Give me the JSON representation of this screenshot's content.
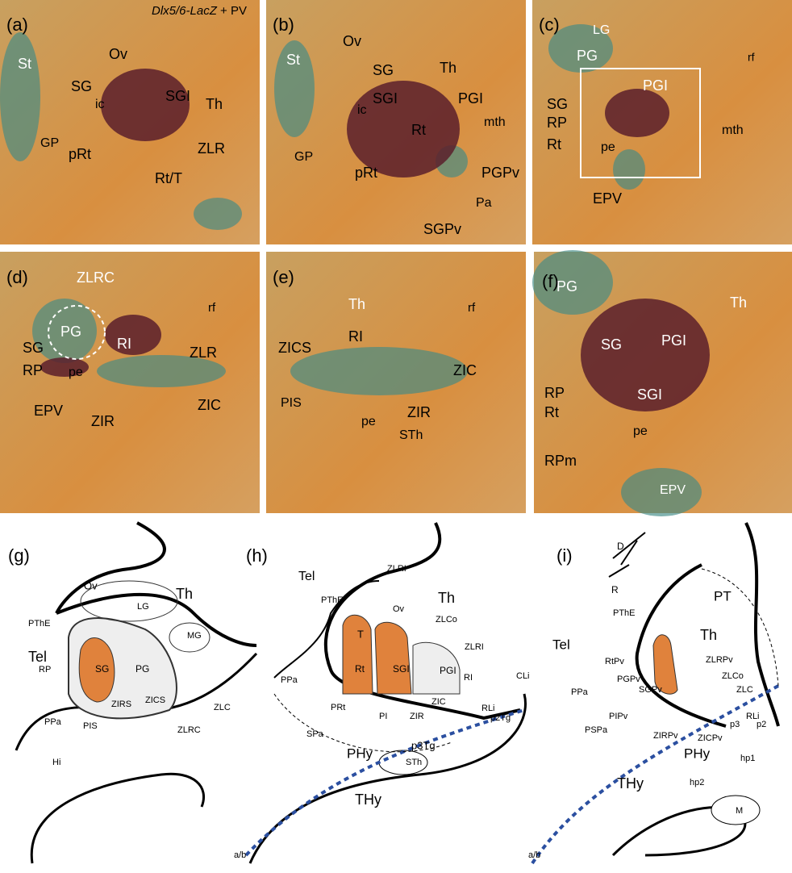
{
  "caption": {
    "gene": "Dlx5/6-LacZ",
    "rest": "+ PV"
  },
  "panels": [
    {
      "letter": "(a)",
      "labels": [
        "St",
        "Ov",
        "SG",
        "SGI",
        "Th",
        "ic",
        "GP",
        "ZLR",
        "pRt",
        "Rt/T"
      ]
    },
    {
      "letter": "(b)",
      "labels": [
        "Ov",
        "St",
        "SG",
        "Th",
        "SGI",
        "PGI",
        "ic",
        "Rt",
        "mth",
        "GP",
        "PGPv",
        "pRt",
        "SGPv",
        "Pa"
      ]
    },
    {
      "letter": "(c)",
      "labels": [
        "LG",
        "PG",
        "rf",
        "PGI",
        "SG",
        "RP",
        "Rt",
        "pe",
        "mth",
        "EPV"
      ]
    },
    {
      "letter": "(d)",
      "labels": [
        "ZLRC",
        "rf",
        "PG",
        "RI",
        "SG",
        "ZLR",
        "RP",
        "pe",
        "ZIC",
        "EPV",
        "ZIR"
      ]
    },
    {
      "letter": "(e)",
      "labels": [
        "Th",
        "rf",
        "RI",
        "ZICS",
        "ZIC",
        "PIS",
        "ZIR",
        "pe",
        "STh"
      ]
    },
    {
      "letter": "(f)",
      "labels": [
        "PG",
        "Th",
        "PGI",
        "SG",
        "SGI",
        "RP",
        "Rt",
        "pe",
        "RPm",
        "EPV"
      ]
    },
    {
      "letter": "(g)",
      "labels": [
        "Th",
        "Ov",
        "LG",
        "PThE",
        "MG",
        "Tel",
        "RP",
        "SG",
        "PG",
        "ZICS",
        "ZIRS",
        "ZLC",
        "PPa",
        "PIS",
        "ZLRC",
        "Hi"
      ]
    },
    {
      "letter": "(h)",
      "labels": [
        "Tel",
        "ZLRI",
        "Th",
        "PThE",
        "Ov",
        "ZLCo",
        "ZLRI",
        "T",
        "Rt",
        "SGI",
        "PGI",
        "RI",
        "CLi",
        "PPa",
        "PRt",
        "ZIC",
        "RLi",
        "PI",
        "ZIR",
        "p2Tg",
        "SPa",
        "p3Tg",
        "STh",
        "PHy",
        "THy",
        "a/b"
      ]
    },
    {
      "letter": "(i)",
      "labels": [
        "D",
        "R",
        "PT",
        "PThE",
        "Th",
        "Tel",
        "ZLRPv",
        "RtPv",
        "ZLCo",
        "PGPv",
        "SGPv",
        "ZLC",
        "PPa",
        "PIPv",
        "RLi",
        "p3",
        "p2",
        "PSPa",
        "ZIRPv",
        "ZICPv",
        "PHy",
        "hp1",
        "THy",
        "hp2",
        "M",
        "a/b"
      ]
    }
  ]
}
